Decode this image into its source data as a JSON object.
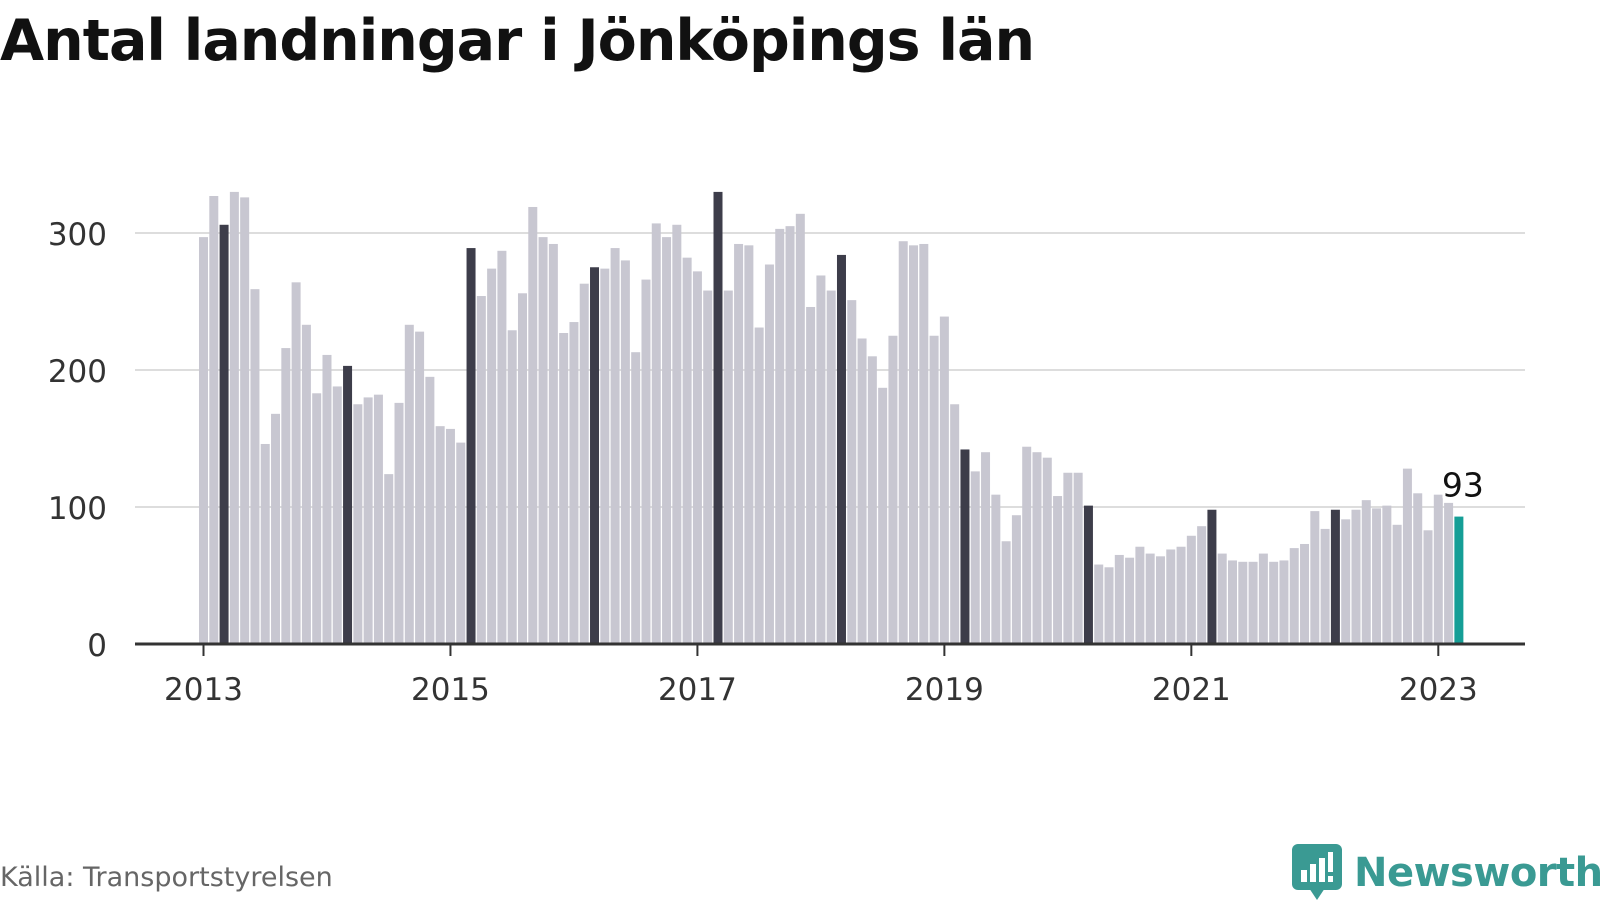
{
  "title": "Antal landningar i Jönköpings län",
  "source": "Källa: Transportstyrelsen",
  "brand": "Newsworthy",
  "chart_data": {
    "type": "bar",
    "title": "Antal landningar i Jönköpings län",
    "xlabel": "",
    "ylabel": "",
    "ylim": [
      0,
      340
    ],
    "y_ticks": [
      0,
      100,
      200,
      300
    ],
    "x_tick_labels": [
      "2013",
      "2015",
      "2017",
      "2019",
      "2021",
      "2023"
    ],
    "grid": true,
    "colors": {
      "default": "#c8c7d1",
      "march": "#3d3d4a",
      "latest": "#159e96",
      "axis": "#333333",
      "grid": "#dddddd"
    },
    "highlight": "Mars varje år (mörk), senaste månaden (grön)",
    "annotation": {
      "label": "93",
      "category": "2023-03"
    },
    "categories": [
      "2013-01",
      "2013-02",
      "2013-03",
      "2013-04",
      "2013-05",
      "2013-06",
      "2013-07",
      "2013-08",
      "2013-09",
      "2013-10",
      "2013-11",
      "2013-12",
      "2014-01",
      "2014-02",
      "2014-03",
      "2014-04",
      "2014-05",
      "2014-06",
      "2014-07",
      "2014-08",
      "2014-09",
      "2014-10",
      "2014-11",
      "2014-12",
      "2015-01",
      "2015-02",
      "2015-03",
      "2015-04",
      "2015-05",
      "2015-06",
      "2015-07",
      "2015-08",
      "2015-09",
      "2015-10",
      "2015-11",
      "2015-12",
      "2016-01",
      "2016-02",
      "2016-03",
      "2016-04",
      "2016-05",
      "2016-06",
      "2016-07",
      "2016-08",
      "2016-09",
      "2016-10",
      "2016-11",
      "2016-12",
      "2017-01",
      "2017-02",
      "2017-03",
      "2017-04",
      "2017-05",
      "2017-06",
      "2017-07",
      "2017-08",
      "2017-09",
      "2017-10",
      "2017-11",
      "2017-12",
      "2018-01",
      "2018-02",
      "2018-03",
      "2018-04",
      "2018-05",
      "2018-06",
      "2018-07",
      "2018-08",
      "2018-09",
      "2018-10",
      "2018-11",
      "2018-12",
      "2019-01",
      "2019-02",
      "2019-03",
      "2019-04",
      "2019-05",
      "2019-06",
      "2019-07",
      "2019-08",
      "2019-09",
      "2019-10",
      "2019-11",
      "2019-12",
      "2020-01",
      "2020-02",
      "2020-03",
      "2020-04",
      "2020-05",
      "2020-06",
      "2020-07",
      "2020-08",
      "2020-09",
      "2020-10",
      "2020-11",
      "2020-12",
      "2021-01",
      "2021-02",
      "2021-03",
      "2021-04",
      "2021-05",
      "2021-06",
      "2021-07",
      "2021-08",
      "2021-09",
      "2021-10",
      "2021-11",
      "2021-12",
      "2022-01",
      "2022-02",
      "2022-03",
      "2022-04",
      "2022-05",
      "2022-06",
      "2022-07",
      "2022-08",
      "2022-09",
      "2022-10",
      "2022-11",
      "2022-12",
      "2023-01",
      "2023-02",
      "2023-03"
    ],
    "values": [
      297,
      327,
      306,
      330,
      326,
      259,
      146,
      168,
      216,
      264,
      233,
      183,
      211,
      188,
      203,
      175,
      180,
      182,
      124,
      176,
      233,
      228,
      195,
      159,
      157,
      147,
      289,
      254,
      274,
      287,
      229,
      256,
      319,
      297,
      292,
      227,
      235,
      263,
      275,
      274,
      289,
      280,
      213,
      266,
      307,
      297,
      306,
      282,
      272,
      258,
      330,
      258,
      292,
      291,
      231,
      277,
      303,
      305,
      314,
      246,
      269,
      258,
      284,
      251,
      223,
      210,
      187,
      225,
      294,
      291,
      292,
      225,
      239,
      175,
      142,
      126,
      140,
      109,
      75,
      94,
      144,
      140,
      136,
      108,
      125,
      125,
      101,
      58,
      56,
      65,
      63,
      71,
      66,
      64,
      69,
      71,
      79,
      86,
      98,
      66,
      61,
      60,
      60,
      66,
      60,
      61,
      70,
      73,
      97,
      84,
      98,
      91,
      98,
      105,
      99,
      101,
      87,
      128,
      110,
      83,
      109,
      103,
      93
    ]
  }
}
